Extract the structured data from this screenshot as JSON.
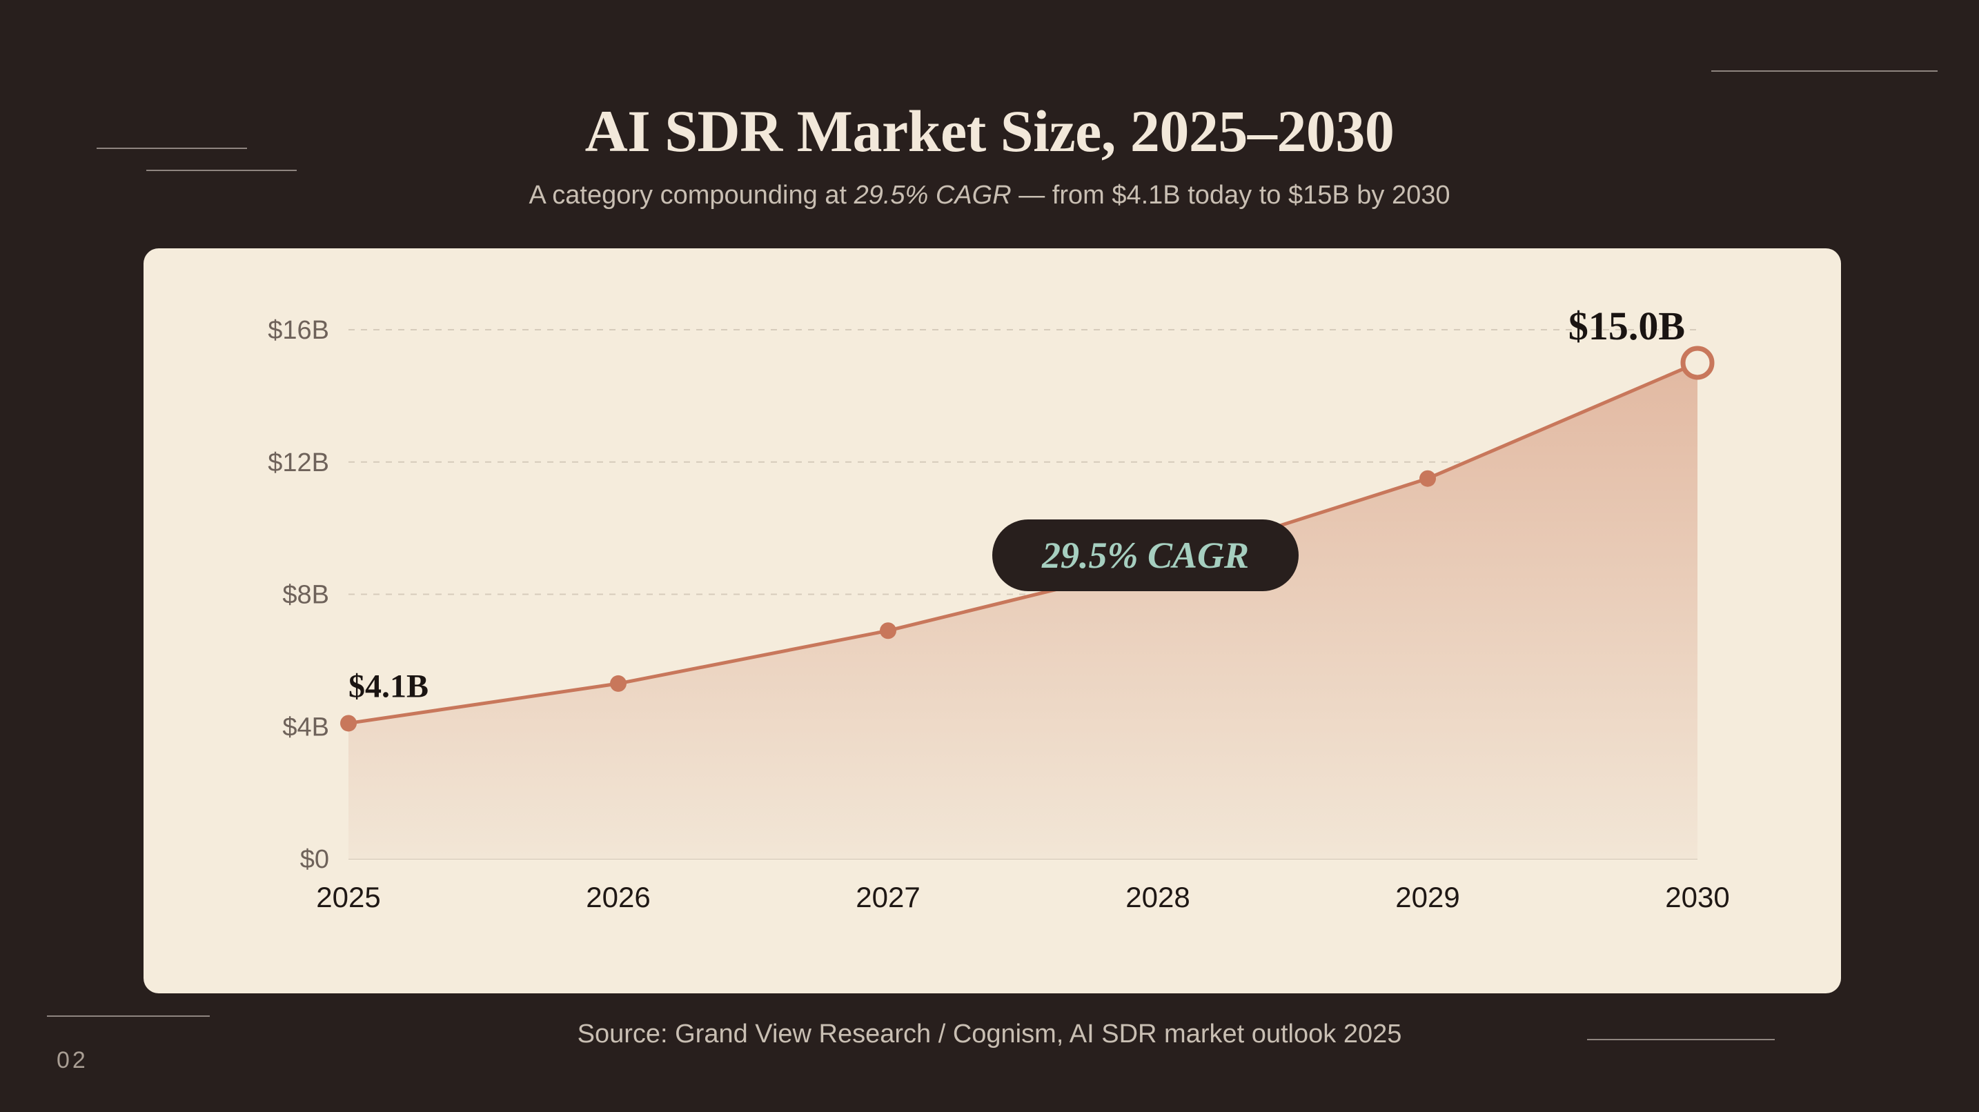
{
  "title": "AI SDR Market Size, 2025–2030",
  "subtitle": {
    "before": "A category compounding at ",
    "emphasis": "29.5% CAGR",
    "after": " — from $4.1B today to $15B by 2030"
  },
  "source": "Source: Grand View Research / Cognism, AI SDR market outlook 2025",
  "page_number": "02",
  "colors": {
    "background": "#281f1d",
    "card": "#f5ecdc",
    "line": "#c8775b",
    "area_top": "#e2b9a2",
    "area_bottom": "#f2e6d6",
    "pill_bg": "#281f1d",
    "pill_text": "#a6cfc0"
  },
  "chart_data": {
    "type": "area",
    "x": [
      "2025",
      "2026",
      "2027",
      "2028",
      "2029",
      "2030"
    ],
    "series": [
      {
        "values": [
          4.1,
          5.3,
          6.9,
          8.9,
          11.5,
          15.0
        ]
      }
    ],
    "ylim": [
      0,
      16
    ],
    "y_ticks": [
      0,
      4,
      8,
      12,
      16
    ],
    "y_tick_labels": [
      "$0",
      "$4B",
      "$8B",
      "$12B",
      "$16B"
    ],
    "grid": "horizontal dashed",
    "data_labels": [
      {
        "x": "2025",
        "text": "$4.1B"
      },
      {
        "x": "2030",
        "text": "$15.0B"
      }
    ],
    "annotation": {
      "text": "29.5% CAGR",
      "x": "2028"
    },
    "title": "",
    "xlabel": "",
    "ylabel": ""
  }
}
